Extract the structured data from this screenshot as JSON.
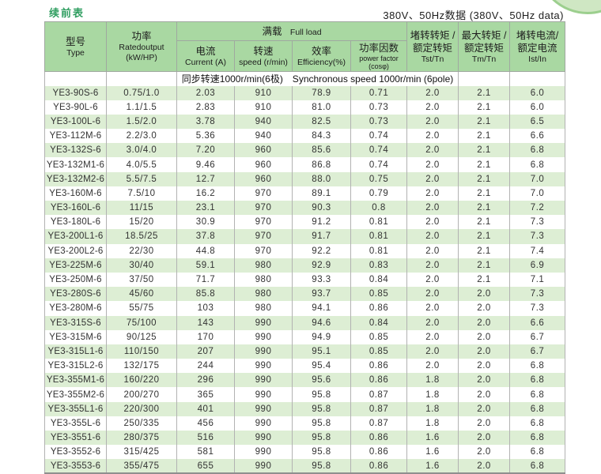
{
  "page": {
    "continued_label": "续前表",
    "voltage_label": "380V、50Hz数据 (380V、50Hz data)"
  },
  "colors": {
    "header_green": "#a9d8a2",
    "stripe_green": "#ddeed4",
    "title_green": "#2f9e60",
    "corner_circle_green": "#cfe7c3"
  },
  "table": {
    "header": {
      "type_zh": "型号",
      "type_en": "Type",
      "power_zh": "功率",
      "power_en": "Ratedoutput",
      "power_unit": "(kW/HP)",
      "full_load_zh": "满载",
      "full_load_en": "Full load",
      "current_zh": "电流",
      "current_en": "Current (A)",
      "speed_zh": "转速",
      "speed_en": "speed (r/min)",
      "efficiency_zh": "效率",
      "efficiency_en": "Efficiency(%)",
      "pf_zh": "功率因数",
      "pf_en": "power factor",
      "pf_sub": "(cosφ)",
      "tst_zh1": "堵转转矩 /",
      "tst_zh2": "额定转矩",
      "tst_en": "Tst/Tn",
      "tm_zh1": "最大转矩 /",
      "tm_zh2": "额定转矩",
      "tm_en": "Tm/Tn",
      "ist_zh1": "堵转电流/",
      "ist_zh2": "额定电流",
      "ist_en": "Ist/In"
    },
    "sync_row_label": "同步转速1000r/min(6极)　Synchronous speed 1000r/min (6pole)",
    "rows": [
      [
        "YE3-90S-6",
        "0.75/1.0",
        "2.03",
        "910",
        "78.9",
        "0.71",
        "2.0",
        "2.1",
        "6.0"
      ],
      [
        "YE3-90L-6",
        "1.1/1.5",
        "2.83",
        "910",
        "81.0",
        "0.73",
        "2.0",
        "2.1",
        "6.0"
      ],
      [
        "YE3-100L-6",
        "1.5/2.0",
        "3.78",
        "940",
        "82.5",
        "0.73",
        "2.0",
        "2.1",
        "6.5"
      ],
      [
        "YE3-112M-6",
        "2.2/3.0",
        "5.36",
        "940",
        "84.3",
        "0.74",
        "2.0",
        "2.1",
        "6.6"
      ],
      [
        "YE3-132S-6",
        "3.0/4.0",
        "7.20",
        "960",
        "85.6",
        "0.74",
        "2.0",
        "2.1",
        "6.8"
      ],
      [
        "YE3-132M1-6",
        "4.0/5.5",
        "9.46",
        "960",
        "86.8",
        "0.74",
        "2.0",
        "2.1",
        "6.8"
      ],
      [
        "YE3-132M2-6",
        "5.5/7.5",
        "12.7",
        "960",
        "88.0",
        "0.75",
        "2.0",
        "2.1",
        "7.0"
      ],
      [
        "YE3-160M-6",
        "7.5/10",
        "16.2",
        "970",
        "89.1",
        "0.79",
        "2.0",
        "2.1",
        "7.0"
      ],
      [
        "YE3-160L-6",
        "11/15",
        "23.1",
        "970",
        "90.3",
        "0.8",
        "2.0",
        "2.1",
        "7.2"
      ],
      [
        "YE3-180L-6",
        "15/20",
        "30.9",
        "970",
        "91.2",
        "0.81",
        "2.0",
        "2.1",
        "7.3"
      ],
      [
        "YE3-200L1-6",
        "18.5/25",
        "37.8",
        "970",
        "91.7",
        "0.81",
        "2.0",
        "2.1",
        "7.3"
      ],
      [
        "YE3-200L2-6",
        "22/30",
        "44.8",
        "970",
        "92.2",
        "0.81",
        "2.0",
        "2.1",
        "7.4"
      ],
      [
        "YE3-225M-6",
        "30/40",
        "59.1",
        "980",
        "92.9",
        "0.83",
        "2.0",
        "2.1",
        "6.9"
      ],
      [
        "YE3-250M-6",
        "37/50",
        "71.7",
        "980",
        "93.3",
        "0.84",
        "2.0",
        "2.1",
        "7.1"
      ],
      [
        "YE3-280S-6",
        "45/60",
        "85.8",
        "980",
        "93.7",
        "0.85",
        "2.0",
        "2.0",
        "7.3"
      ],
      [
        "YE3-280M-6",
        "55/75",
        "103",
        "980",
        "94.1",
        "0.86",
        "2.0",
        "2.0",
        "7.3"
      ],
      [
        "YE3-315S-6",
        "75/100",
        "143",
        "990",
        "94.6",
        "0.84",
        "2.0",
        "2.0",
        "6.6"
      ],
      [
        "YE3-315M-6",
        "90/125",
        "170",
        "990",
        "94.9",
        "0.85",
        "2.0",
        "2.0",
        "6.7"
      ],
      [
        "YE3-315L1-6",
        "110/150",
        "207",
        "990",
        "95.1",
        "0.85",
        "2.0",
        "2.0",
        "6.7"
      ],
      [
        "YE3-315L2-6",
        "132/175",
        "244",
        "990",
        "95.4",
        "0.86",
        "2.0",
        "2.0",
        "6.8"
      ],
      [
        "YE3-355M1-6",
        "160/220",
        "296",
        "990",
        "95.6",
        "0.86",
        "1.8",
        "2.0",
        "6.8"
      ],
      [
        "YE3-355M2-6",
        "200/270",
        "365",
        "990",
        "95.8",
        "0.87",
        "1.8",
        "2.0",
        "6.8"
      ],
      [
        "YE3-355L1-6",
        "220/300",
        "401",
        "990",
        "95.8",
        "0.87",
        "1.8",
        "2.0",
        "6.8"
      ],
      [
        "YE3-355L-6",
        "250/335",
        "456",
        "990",
        "95.8",
        "0.87",
        "1.8",
        "2.0",
        "6.8"
      ],
      [
        "YE3-3551-6",
        "280/375",
        "516",
        "990",
        "95.8",
        "0.86",
        "1.6",
        "2.0",
        "6.8"
      ],
      [
        "YE3-3552-6",
        "315/425",
        "581",
        "990",
        "95.8",
        "0.86",
        "1.6",
        "2.0",
        "6.8"
      ],
      [
        "YE3-3553-6",
        "355/475",
        "655",
        "990",
        "95.8",
        "0.86",
        "1.6",
        "2.0",
        "6.8"
      ]
    ]
  }
}
